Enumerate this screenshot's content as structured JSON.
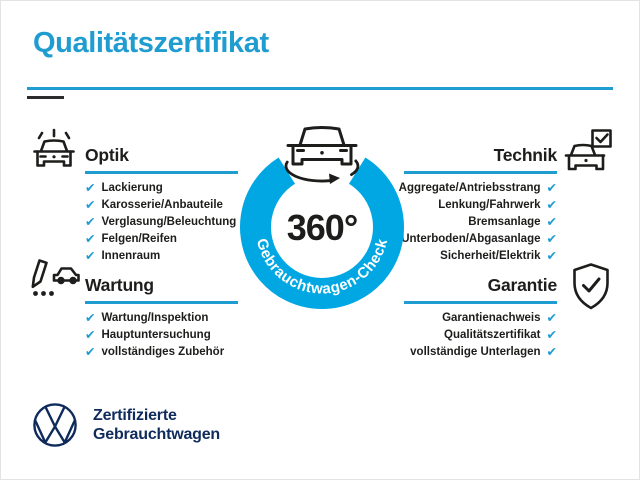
{
  "title": "Qualitätszertifikat",
  "center": {
    "value": "360°",
    "ring_label": "Gebrauchtwagen-Check",
    "icon": "car-rotation-icon"
  },
  "sections": [
    {
      "id": "optik",
      "title": "Optik",
      "icon": "sparkle-car-icon",
      "side": "left",
      "row": "top",
      "items": [
        "Lackierung",
        "Karosserie/Anbauteile",
        "Verglasung/Beleuchtung",
        "Felgen/Reifen",
        "Innenraum"
      ]
    },
    {
      "id": "technik",
      "title": "Technik",
      "icon": "car-checkbox-icon",
      "side": "right",
      "row": "top",
      "items": [
        "Aggregate/Antriebsstrang",
        "Lenkung/Fahrwerk",
        "Bremsanlage",
        "Unterboden/Abgasanlage",
        "Sicherheit/Elektrik"
      ]
    },
    {
      "id": "wartung",
      "title": "Wartung",
      "icon": "pencil-car-checklist-icon",
      "side": "left",
      "row": "bottom",
      "items": [
        "Wartung/Inspektion",
        "Hauptuntersuchung",
        "vollständiges Zubehör"
      ]
    },
    {
      "id": "garantie",
      "title": "Garantie",
      "icon": "shield-check-icon",
      "side": "right",
      "row": "bottom",
      "items": [
        "Garantienachweis",
        "Qualitätszertifikat",
        "vollständige Unterlagen"
      ]
    }
  ],
  "footer": {
    "line1": "Zertifizierte",
    "line2": "Gebrauchtwagen",
    "logo": "vw-logo"
  },
  "glyphs": {
    "check": "✔"
  },
  "colors": {
    "accent": "#1F9CD0",
    "ring": "#00A7E3",
    "navy": "#0F2B5C",
    "ink": "#1D1D1B"
  }
}
